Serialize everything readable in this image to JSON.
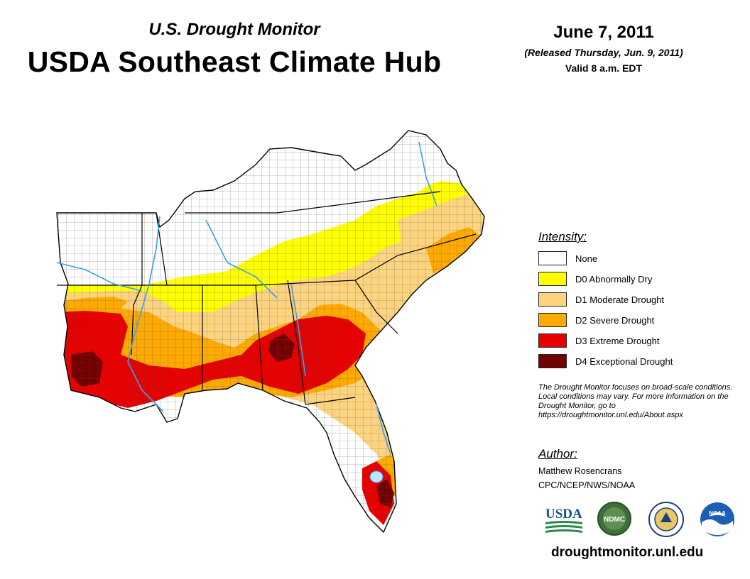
{
  "header": {
    "subtitle": "U.S. Drought Monitor",
    "title": "USDA Southeast Climate Hub",
    "date": "June 7, 2011",
    "released": "(Released Thursday, Jun. 9, 2011)",
    "valid": "Valid 8 a.m. EDT"
  },
  "legend": {
    "title": "Intensity:",
    "items": [
      {
        "label": "None",
        "color": "#ffffff"
      },
      {
        "label": "D0 Abnormally Dry",
        "color": "#ffff00"
      },
      {
        "label": "D1 Moderate Drought",
        "color": "#fcd37f"
      },
      {
        "label": "D2 Severe Drought",
        "color": "#ffaa00"
      },
      {
        "label": "D3 Extreme Drought",
        "color": "#e60000"
      },
      {
        "label": "D4 Exceptional Drought",
        "color": "#730000"
      }
    ]
  },
  "note": "The Drought Monitor focuses on broad-scale conditions. Local conditions may vary. For more information on the Drought Monitor, go to https://droughtmonitor.unl.edu/About.aspx",
  "author": {
    "title": "Author:",
    "name": "Matthew Rosencrans",
    "org": "CPC/NCEP/NWS/NOAA"
  },
  "logos": {
    "usda": "USDA",
    "ndmc": "NDMC",
    "noaa": "NOAA"
  },
  "website": "droughtmonitor.unl.edu"
}
